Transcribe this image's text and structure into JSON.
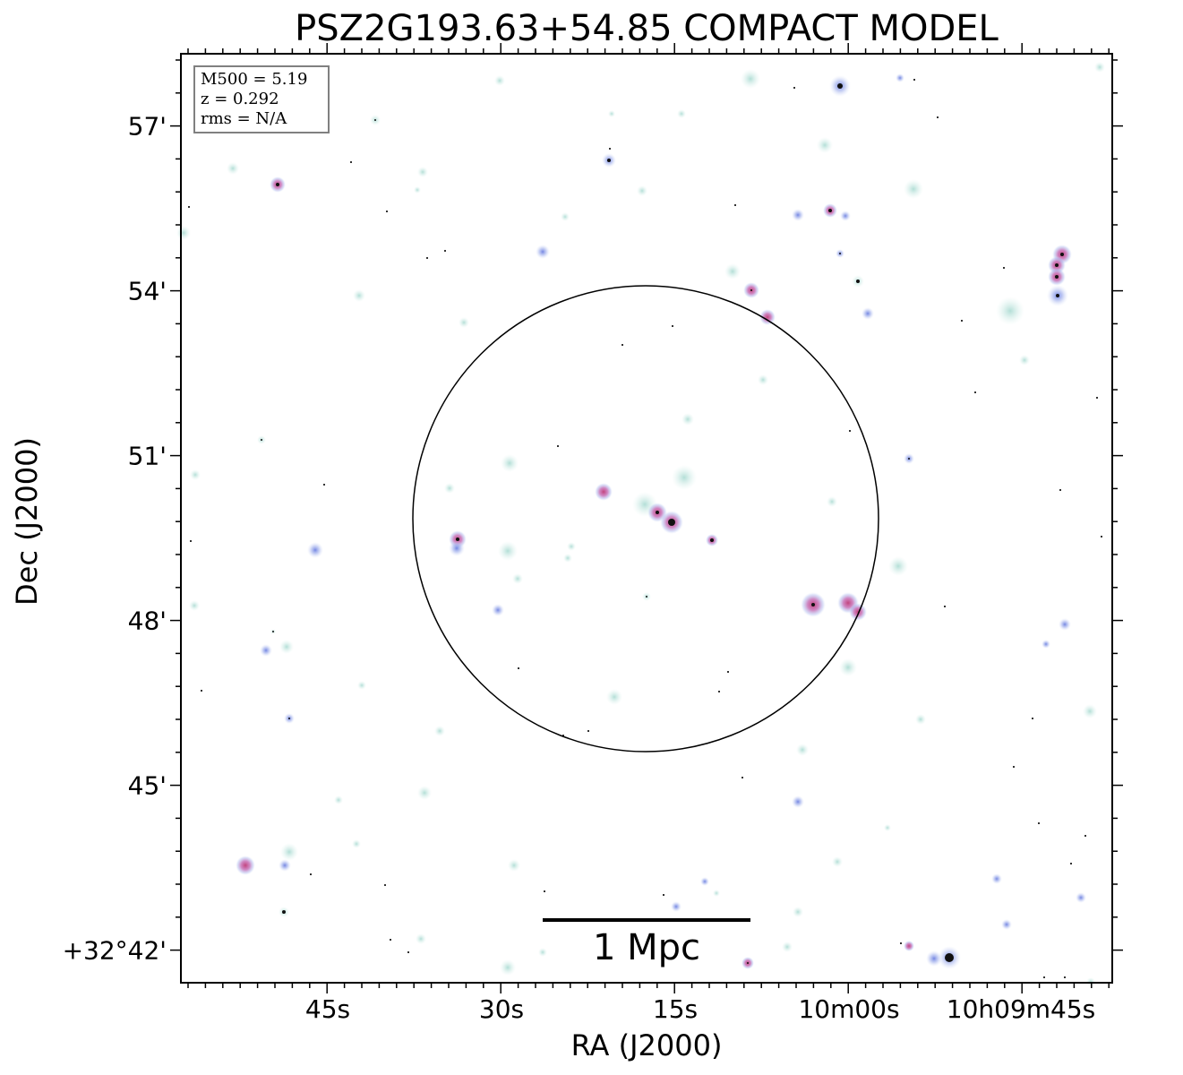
{
  "title": "PSZ2G193.63+54.85 COMPACT MODEL",
  "axes": {
    "xlabel": "RA (J2000)",
    "ylabel": "Dec (J2000)",
    "xticks": [
      "45s",
      "30s",
      "15s",
      "10m00s",
      "10h09m45s"
    ],
    "yticks": [
      "57'",
      "54'",
      "51'",
      "48'",
      "45'",
      "+32°42'"
    ]
  },
  "info": {
    "m500": "M500 = 5.19",
    "z": "z = 0.292",
    "rms": "rms = N/A"
  },
  "scalebar": {
    "label": "1 Mpc"
  },
  "colors": {
    "frame": "#000000",
    "source_pink": "#d0659a",
    "source_blue": "#8aa4e8",
    "source_teal": "#b8e0d8",
    "source_core": "#111111"
  }
}
